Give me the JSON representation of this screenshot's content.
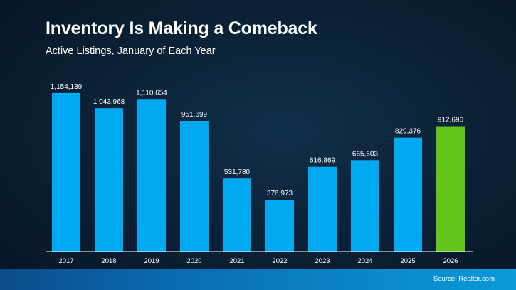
{
  "header": {
    "title": "Inventory Is Making a Comeback",
    "subtitle": "Active Listings, January of Each Year"
  },
  "footer": {
    "source": "Source: Realtor.com"
  },
  "colors": {
    "bar": "#00a9f0",
    "highlight_bar": "#63c51c",
    "background": "#0b2237",
    "axis": "#ffffff"
  },
  "chart_data": {
    "type": "bar",
    "categories": [
      "2017",
      "2018",
      "2019",
      "2020",
      "2021",
      "2022",
      "2023",
      "2024",
      "2025",
      "2026"
    ],
    "values": [
      1154139,
      1043968,
      1110654,
      951699,
      531780,
      376973,
      616869,
      665603,
      829376,
      912696
    ],
    "value_labels": [
      "1,154,139",
      "1,043,968",
      "1,110,654",
      "951,699",
      "531,780",
      "376,973",
      "616,869",
      "665,603",
      "829,376",
      "912,696"
    ],
    "highlight_category": "2026",
    "title": "Inventory Is Making a Comeback",
    "subtitle": "Active Listings, January of Each Year",
    "xlabel": "",
    "ylabel": "",
    "ylim": [
      0,
      1200000
    ],
    "grid": false,
    "legend": "none"
  }
}
